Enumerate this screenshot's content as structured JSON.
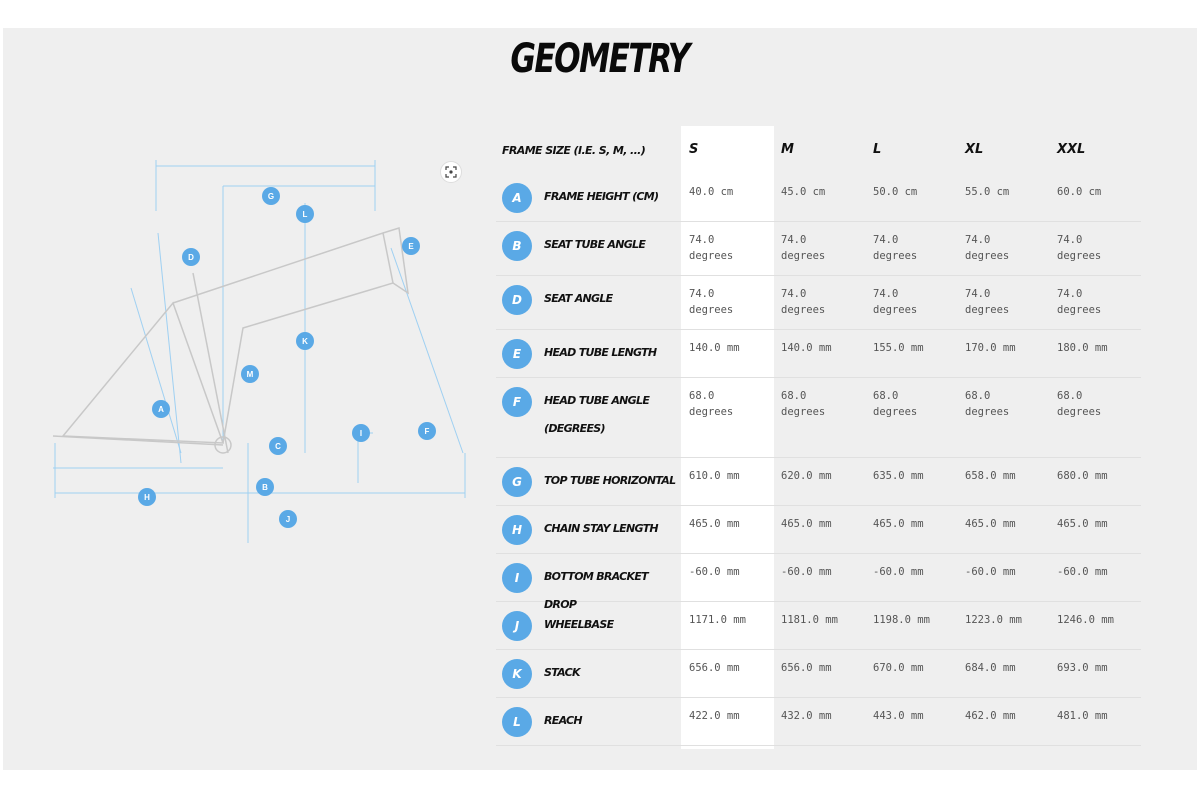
{
  "page": {
    "title": "GEOMETRY"
  },
  "diagram": {
    "markers": [
      "G",
      "L",
      "D",
      "E",
      "K",
      "M",
      "A",
      "I",
      "F",
      "C",
      "B",
      "H",
      "J"
    ]
  },
  "table": {
    "header_label": "FRAME SIZE (I.E. S, M, ...)",
    "sizes": [
      "S",
      "M",
      "L",
      "XL",
      "XXL"
    ],
    "rows": [
      {
        "letter": "A",
        "label": "FRAME HEIGHT (CM)",
        "values": [
          "40.0 cm",
          "45.0 cm",
          "50.0 cm",
          "55.0 cm",
          "60.0 cm"
        ]
      },
      {
        "letter": "B",
        "label": "SEAT TUBE ANGLE",
        "values": [
          "74.0\ndegrees",
          "74.0\ndegrees",
          "74.0\ndegrees",
          "74.0\ndegrees",
          "74.0\ndegrees"
        ]
      },
      {
        "letter": "D",
        "label": "SEAT ANGLE",
        "values": [
          "74.0\ndegrees",
          "74.0\ndegrees",
          "74.0\ndegrees",
          "74.0\ndegrees",
          "74.0\ndegrees"
        ]
      },
      {
        "letter": "E",
        "label": "HEAD TUBE LENGTH",
        "values": [
          "140.0 mm",
          "140.0 mm",
          "155.0 mm",
          "170.0 mm",
          "180.0 mm"
        ]
      },
      {
        "letter": "F",
        "label": "HEAD TUBE ANGLE\n(DEGREES)",
        "values": [
          "68.0\ndegrees",
          "68.0\ndegrees",
          "68.0\ndegrees",
          "68.0\ndegrees",
          "68.0\ndegrees"
        ]
      },
      {
        "letter": "G",
        "label": "TOP TUBE HORIZONTAL",
        "values": [
          "610.0 mm",
          "620.0 mm",
          "635.0 mm",
          "658.0 mm",
          "680.0 mm"
        ]
      },
      {
        "letter": "H",
        "label": "CHAIN STAY LENGTH",
        "values": [
          "465.0 mm",
          "465.0 mm",
          "465.0 mm",
          "465.0 mm",
          "465.0 mm"
        ]
      },
      {
        "letter": "I",
        "label": "BOTTOM BRACKET DROP",
        "values": [
          "-60.0 mm",
          "-60.0 mm",
          "-60.0 mm",
          "-60.0 mm",
          "-60.0 mm"
        ]
      },
      {
        "letter": "J",
        "label": "WHEELBASE",
        "values": [
          "1171.0 mm",
          "1181.0 mm",
          "1198.0 mm",
          "1223.0 mm",
          "1246.0 mm"
        ]
      },
      {
        "letter": "K",
        "label": "STACK",
        "values": [
          "656.0 mm",
          "656.0 mm",
          "670.0 mm",
          "684.0 mm",
          "693.0 mm"
        ]
      },
      {
        "letter": "L",
        "label": "REACH",
        "values": [
          "422.0 mm",
          "432.0 mm",
          "443.0 mm",
          "462.0 mm",
          "481.0 mm"
        ]
      }
    ]
  },
  "icons": {
    "zoom": "zoom-icon"
  },
  "colors": {
    "accent": "#5aa9e6",
    "panel": "#efefef",
    "highlight": "#ffffff"
  }
}
